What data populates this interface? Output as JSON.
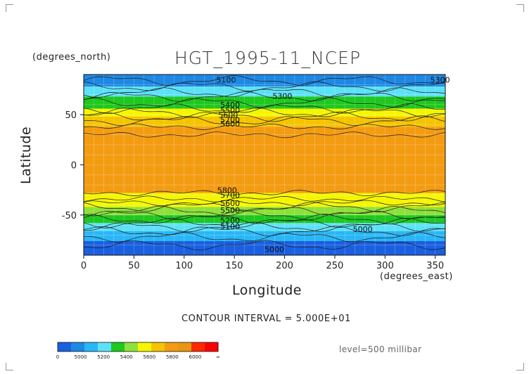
{
  "chart_data": {
    "type": "heatmap",
    "title": "HGT_1995-11_NCEP",
    "xlabel": "Longitude",
    "ylabel": "Latitude",
    "x_units": "(degrees_east)",
    "y_units": "(degrees_north)",
    "xlim": [
      0,
      360
    ],
    "ylim": [
      -90,
      90
    ],
    "x_ticks": [
      "0",
      "50",
      "100",
      "150",
      "200",
      "250",
      "300",
      "350"
    ],
    "y_ticks": [
      "50",
      "0",
      "-50"
    ],
    "contour_interval": "CONTOUR INTERVAL = 5.000E+01",
    "level": "level=500 millibar",
    "colorbar": {
      "labels": [
        "0",
        "5000",
        "5200",
        "5400",
        "5600",
        "5800",
        "6000",
        "∞"
      ],
      "colors": [
        "#1a5fe0",
        "#1e88e5",
        "#29b6f6",
        "#5ce1f7",
        "#1ec81e",
        "#8ee03a",
        "#f5f500",
        "#f5c400",
        "#f39c12",
        "#e8960f",
        "#ff2a00",
        "#ff0000"
      ]
    },
    "contour_labels": [
      "5100",
      "5300",
      "5400",
      "5500",
      "5600",
      "5700",
      "5800",
      "5000",
      "5200"
    ],
    "zonal_bands": [
      {
        "lat_from": 90,
        "lat_to": 78,
        "color": "#1e88e5"
      },
      {
        "lat_from": 78,
        "lat_to": 68,
        "color": "#5ce1f7"
      },
      {
        "lat_from": 68,
        "lat_to": 56,
        "color": "#1ec81e"
      },
      {
        "lat_from": 56,
        "lat_to": 48,
        "color": "#f5f500"
      },
      {
        "lat_from": 48,
        "lat_to": 38,
        "color": "#f5c400"
      },
      {
        "lat_from": 38,
        "lat_to": -28,
        "color": "#f39c12"
      },
      {
        "lat_from": -28,
        "lat_to": -42,
        "color": "#f5f500"
      },
      {
        "lat_from": -42,
        "lat_to": -50,
        "color": "#8ee03a"
      },
      {
        "lat_from": -50,
        "lat_to": -58,
        "color": "#1ec81e"
      },
      {
        "lat_from": -58,
        "lat_to": -66,
        "color": "#5ce1f7"
      },
      {
        "lat_from": -66,
        "lat_to": -76,
        "color": "#29b6f6"
      },
      {
        "lat_from": -76,
        "lat_to": -90,
        "color": "#1a5fe0"
      }
    ]
  }
}
